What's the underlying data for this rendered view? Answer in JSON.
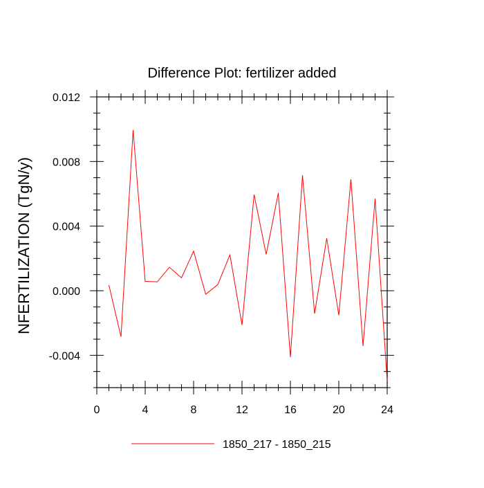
{
  "chart_data": {
    "type": "line",
    "title": "Difference Plot: fertilizer added",
    "xlabel": "",
    "ylabel": "NFERTILIZATION  (TgN/y)",
    "xlim": [
      0,
      24
    ],
    "ylim": [
      -0.006,
      0.012
    ],
    "x_ticks": [
      0,
      4,
      8,
      12,
      16,
      20,
      24
    ],
    "x_tick_labels": [
      "0",
      "4",
      "8",
      "12",
      "16",
      "20",
      "24"
    ],
    "y_ticks": [
      -0.004,
      0.0,
      0.004,
      0.008,
      0.012
    ],
    "y_tick_labels": [
      "-0.004",
      "0.000",
      "0.004",
      "0.008",
      "0.012"
    ],
    "grid": false,
    "legend_position": "bottom",
    "series": [
      {
        "name": "1850_217 - 1850_215",
        "color": "#ff0000",
        "x": [
          1,
          2,
          3,
          4,
          5,
          6,
          7,
          8,
          9,
          10,
          11,
          12,
          13,
          14,
          15,
          16,
          17,
          18,
          19,
          20,
          21,
          22,
          23,
          24
        ],
        "values": [
          0.00035,
          -0.00285,
          0.00995,
          0.00058,
          0.00055,
          0.00145,
          0.0008,
          0.00245,
          -0.00022,
          0.00038,
          0.00222,
          -0.00212,
          0.00595,
          0.00225,
          0.00605,
          -0.00412,
          0.00715,
          -0.00142,
          0.00325,
          -0.00152,
          0.0069,
          -0.00342,
          0.0057,
          -0.0056
        ]
      }
    ]
  }
}
